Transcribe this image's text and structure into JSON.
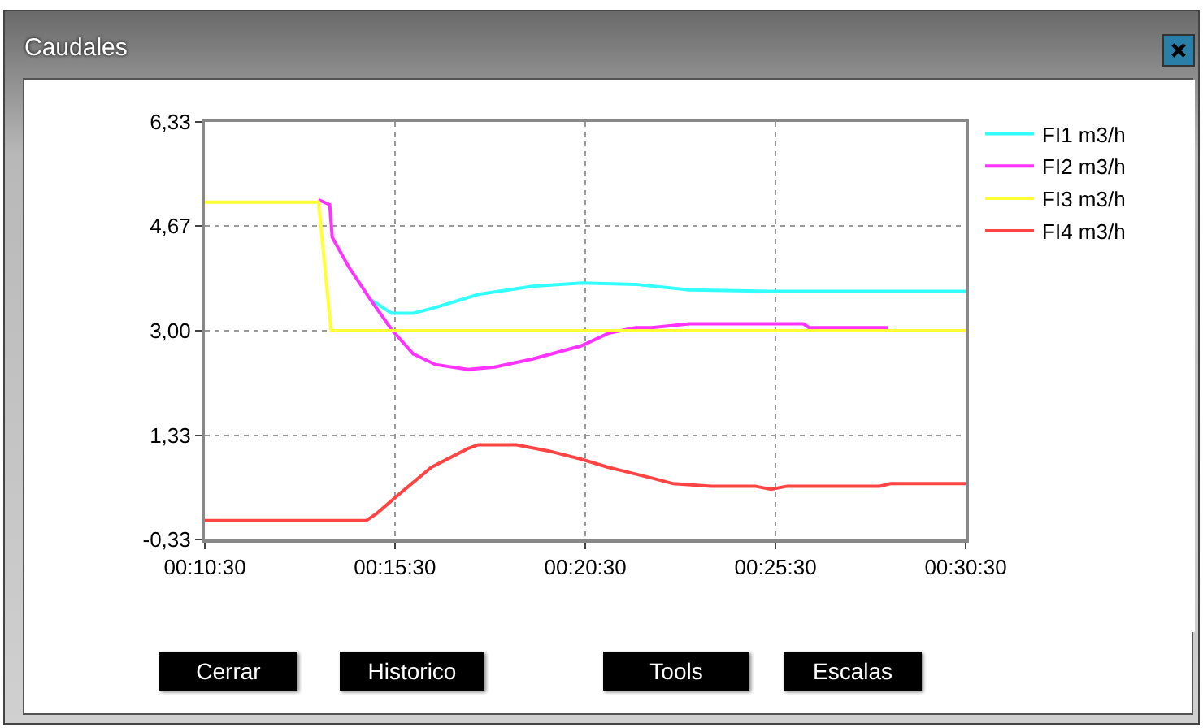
{
  "chart_data": {
    "type": "line",
    "title": "Caudales",
    "xlim": [
      0.175,
      0.5083
    ],
    "xticks": [
      {
        "value": 0.175,
        "label": "00:10:30"
      },
      {
        "value": 0.2583,
        "label": "00:15:30"
      },
      {
        "value": 0.3417,
        "label": "00:20:30"
      },
      {
        "value": 0.425,
        "label": "00:25:30"
      },
      {
        "value": 0.5083,
        "label": "00:30:30"
      }
    ],
    "ylim": [
      -0.33,
      6.33
    ],
    "yticks": [
      {
        "value": -0.33,
        "label": "-0,33"
      },
      {
        "value": 1.33,
        "label": "1,33"
      },
      {
        "value": 3.0,
        "label": "3,00"
      },
      {
        "value": 4.67,
        "label": "4,67"
      },
      {
        "value": 6.33,
        "label": "6,33"
      }
    ],
    "grid": true,
    "legend": "top right",
    "line_style": "solid",
    "marker": "none",
    "series": [
      {
        "name": "FI1 m3/h",
        "color": "#33ffff",
        "x": [
          0.2475,
          0.2568,
          0.2663,
          0.276,
          0.2948,
          0.3187,
          0.34,
          0.3637,
          0.3873,
          0.423,
          0.5083
        ],
        "values": [
          3.5,
          3.28,
          3.28,
          3.37,
          3.58,
          3.71,
          3.76,
          3.74,
          3.65,
          3.63,
          3.63
        ]
      },
      {
        "name": "FI2 m3/h",
        "color": "#ff33ff",
        "x": [
          0.2248,
          0.2297,
          0.2308,
          0.238,
          0.2475,
          0.2568,
          0.2663,
          0.276,
          0.2902,
          0.302,
          0.3187,
          0.34,
          0.3518,
          0.3637,
          0.3708,
          0.3873,
          0.4373,
          0.4397,
          0.4742
        ],
        "values": [
          5.09,
          5.01,
          4.49,
          4.02,
          3.5,
          3.02,
          2.63,
          2.46,
          2.38,
          2.42,
          2.55,
          2.76,
          2.96,
          3.05,
          3.05,
          3.11,
          3.11,
          3.05,
          3.05
        ]
      },
      {
        "name": "FI3 m3/h",
        "color": "#ffff33",
        "x": [
          0.175,
          0.2248,
          0.2303,
          0.5083
        ],
        "values": [
          5.05,
          5.05,
          3.0,
          3.0
        ]
      },
      {
        "name": "FI4 m3/h",
        "color": "#ff4444",
        "x": [
          0.175,
          0.2457,
          0.2505,
          0.26,
          0.2742,
          0.2902,
          0.2948,
          0.3115,
          0.3258,
          0.34,
          0.3518,
          0.3708,
          0.3802,
          0.3968,
          0.416,
          0.423,
          0.4302,
          0.4707,
          0.4753,
          0.5083
        ],
        "values": [
          -0.03,
          -0.03,
          0.09,
          0.39,
          0.82,
          1.12,
          1.18,
          1.18,
          1.08,
          0.95,
          0.82,
          0.65,
          0.56,
          0.52,
          0.52,
          0.47,
          0.52,
          0.52,
          0.56,
          0.56
        ]
      }
    ],
    "annotations": [
      "Cerrar",
      "Historico",
      "Tools",
      "Escalas"
    ]
  }
}
